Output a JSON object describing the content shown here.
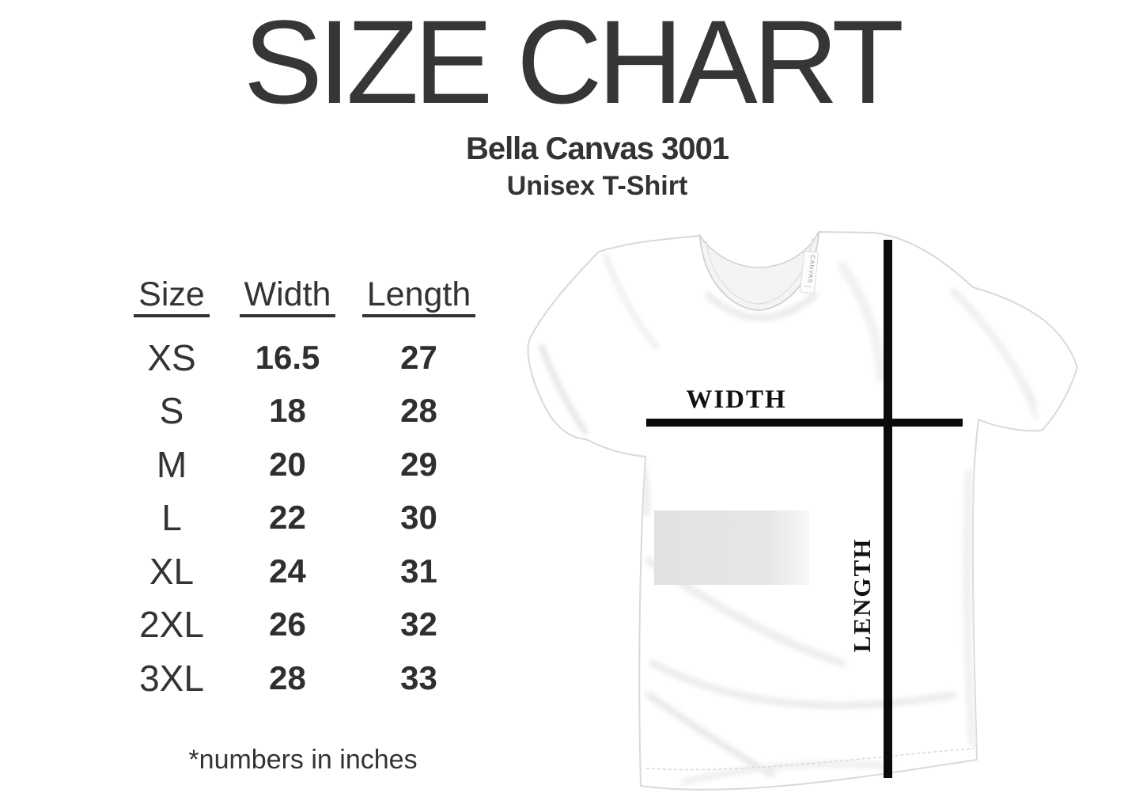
{
  "title": "SIZE CHART",
  "subtitle": "Bella Canvas 3001",
  "subtitle2": "Unisex T-Shirt",
  "note": "*numbers in inches",
  "size_table": {
    "headers": [
      "Size",
      "Width",
      "Length"
    ],
    "rows": [
      {
        "size": "XS",
        "width": "16.5",
        "length": "27"
      },
      {
        "size": "S",
        "width": "18",
        "length": "28"
      },
      {
        "size": "M",
        "width": "20",
        "length": "29"
      },
      {
        "size": "L",
        "width": "22",
        "length": "30"
      },
      {
        "size": "XL",
        "width": "24",
        "length": "31"
      },
      {
        "size": "2XL",
        "width": "26",
        "length": "32"
      },
      {
        "size": "3XL",
        "width": "28",
        "length": "33"
      }
    ]
  },
  "shirt": {
    "width_label": "WIDTH",
    "length_label": "LENGTH",
    "tag_label": "CANVAS",
    "line_color": "#0b0b0b",
    "fabric_color": "#ffffff",
    "outline_color": "#d9d9d9",
    "patch_color": "#e3e3e3"
  },
  "chart_data": {
    "type": "table",
    "title": "SIZE CHART",
    "subtitle": "Bella Canvas 3001 Unisex T-Shirt",
    "columns": [
      "Size",
      "Width",
      "Length"
    ],
    "rows": [
      [
        "XS",
        16.5,
        27
      ],
      [
        "S",
        18,
        28
      ],
      [
        "M",
        20,
        29
      ],
      [
        "L",
        22,
        30
      ],
      [
        "XL",
        24,
        31
      ],
      [
        "2XL",
        26,
        32
      ],
      [
        "3XL",
        28,
        33
      ]
    ],
    "units": "inches",
    "notes": "*numbers in inches; measurement axes WIDTH (chest, horizontal) and LENGTH (shoulder to hem, vertical) illustrated on t-shirt photo"
  }
}
